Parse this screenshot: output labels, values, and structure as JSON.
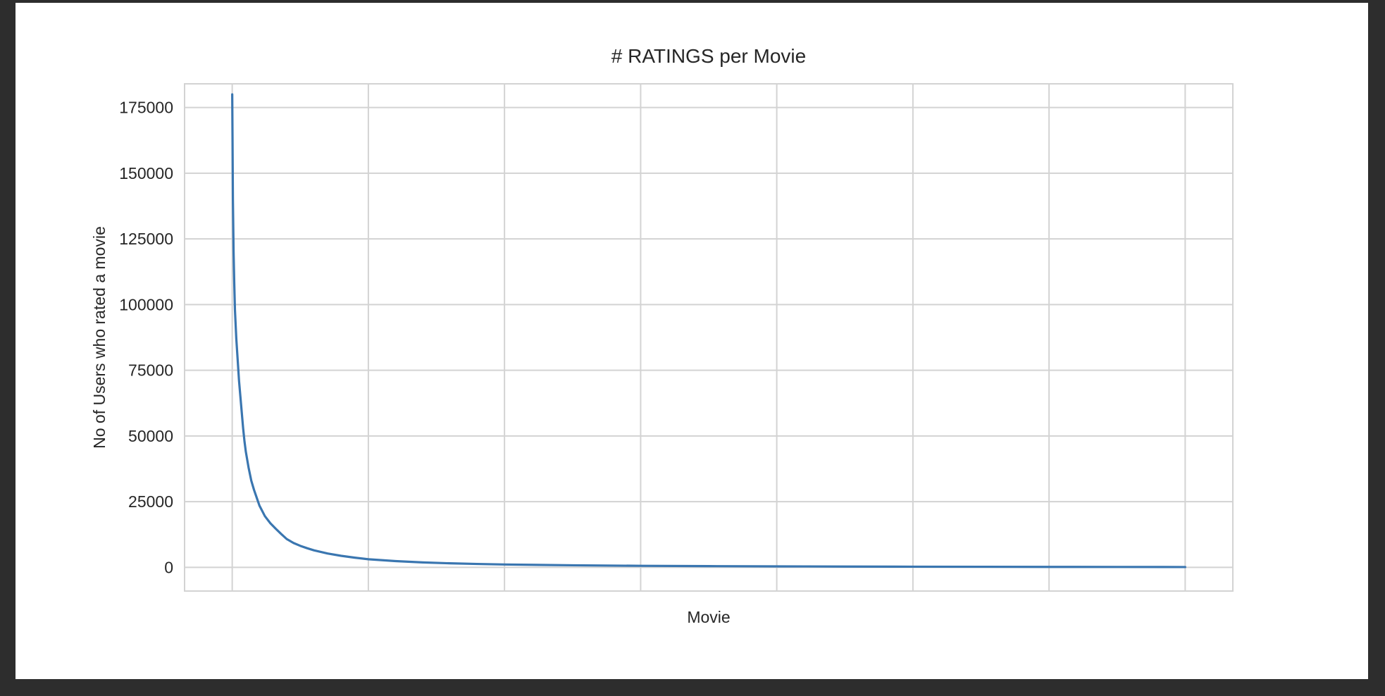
{
  "chart_data": {
    "type": "line",
    "title": "# RATINGS per Movie",
    "xlabel": "Movie",
    "ylabel": "No of Users who rated a movie",
    "xlim": [
      -350,
      7350
    ],
    "ylim": [
      -9000,
      184000
    ],
    "y_ticks": [
      0,
      25000,
      50000,
      75000,
      100000,
      125000,
      150000,
      175000
    ],
    "y_tick_labels": [
      "0",
      "25000",
      "50000",
      "75000",
      "100000",
      "125000",
      "150000",
      "175000"
    ],
    "x_gridlines": [
      0,
      1000,
      2000,
      3000,
      4000,
      5000,
      6000,
      7000
    ],
    "x_tick_labels_shown": false,
    "grid": true,
    "line_color": "#3a76b0",
    "series": [
      {
        "x": [
          0,
          2,
          5,
          10,
          15,
          20,
          30,
          40,
          50,
          60,
          70,
          80,
          90,
          100,
          120,
          140,
          160,
          180,
          200,
          240,
          280,
          320,
          360,
          400,
          450,
          500,
          550,
          600,
          700,
          800,
          900,
          1000,
          1200,
          1400,
          1600,
          1800,
          2000,
          2500,
          3000,
          3500,
          4000,
          4500,
          5000,
          5500,
          6000,
          6500,
          7000
        ],
        "y": [
          180000,
          165000,
          140000,
          120000,
          108000,
          98000,
          87000,
          79000,
          71000,
          65000,
          59000,
          53000,
          48000,
          44000,
          38000,
          33000,
          29500,
          26500,
          23500,
          19500,
          16800,
          14700,
          12700,
          10800,
          9300,
          8200,
          7300,
          6500,
          5300,
          4400,
          3700,
          3100,
          2400,
          1900,
          1550,
          1300,
          1100,
          800,
          600,
          480,
          390,
          320,
          270,
          230,
          190,
          160,
          130
        ]
      }
    ]
  }
}
